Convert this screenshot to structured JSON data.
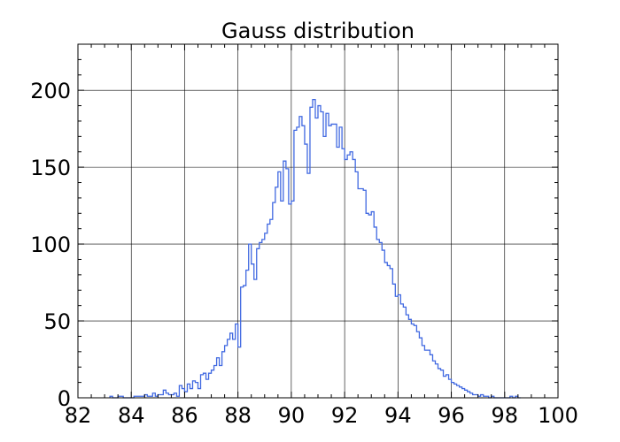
{
  "chart_data": {
    "type": "histogram",
    "title": "Gauss distribution",
    "xlabel": "",
    "ylabel": "",
    "xlim": [
      82,
      100
    ],
    "ylim": [
      0,
      230
    ],
    "x_ticks": [
      82,
      84,
      86,
      88,
      90,
      92,
      94,
      96,
      98,
      100
    ],
    "x_tick_labels": [
      "82",
      "84",
      "86",
      "88",
      "90",
      "92",
      "94",
      "96",
      "98",
      "100"
    ],
    "y_ticks": [
      0,
      50,
      100,
      150,
      200
    ],
    "y_tick_labels": [
      "0",
      "50",
      "100",
      "150",
      "200"
    ],
    "grid": true,
    "line_color": "#4169e1",
    "bin_start": 83.2,
    "bin_width": 0.1,
    "counts": [
      1,
      0,
      0,
      1,
      1,
      0,
      0,
      0,
      0,
      1,
      1,
      1,
      1,
      2,
      1,
      1,
      3,
      1,
      2,
      2,
      5,
      3,
      2,
      2,
      3,
      1,
      8,
      6,
      4,
      9,
      6,
      11,
      10,
      6,
      15,
      16,
      12,
      16,
      18,
      21,
      26,
      21,
      30,
      34,
      38,
      42,
      38,
      48,
      33,
      72,
      73,
      83,
      100,
      87,
      77,
      97,
      101,
      103,
      107,
      113,
      116,
      127,
      137,
      147,
      128,
      154,
      149,
      126,
      128,
      174,
      176,
      183,
      177,
      165,
      146,
      189,
      194,
      182,
      190,
      186,
      170,
      185,
      177,
      178,
      178,
      163,
      176,
      162,
      155,
      158,
      160,
      155,
      147,
      136,
      136,
      135,
      120,
      119,
      121,
      111,
      103,
      101,
      96,
      88,
      86,
      84,
      74,
      66,
      67,
      61,
      59,
      54,
      51,
      48,
      47,
      43,
      39,
      34,
      31,
      31,
      28,
      24,
      22,
      19,
      18,
      14,
      15,
      12,
      10,
      9,
      8,
      7,
      6,
      5,
      4,
      3,
      2,
      2,
      1,
      2,
      1,
      1,
      0,
      1,
      0,
      0,
      0,
      0,
      0,
      0,
      1,
      0,
      1,
      0
    ]
  }
}
